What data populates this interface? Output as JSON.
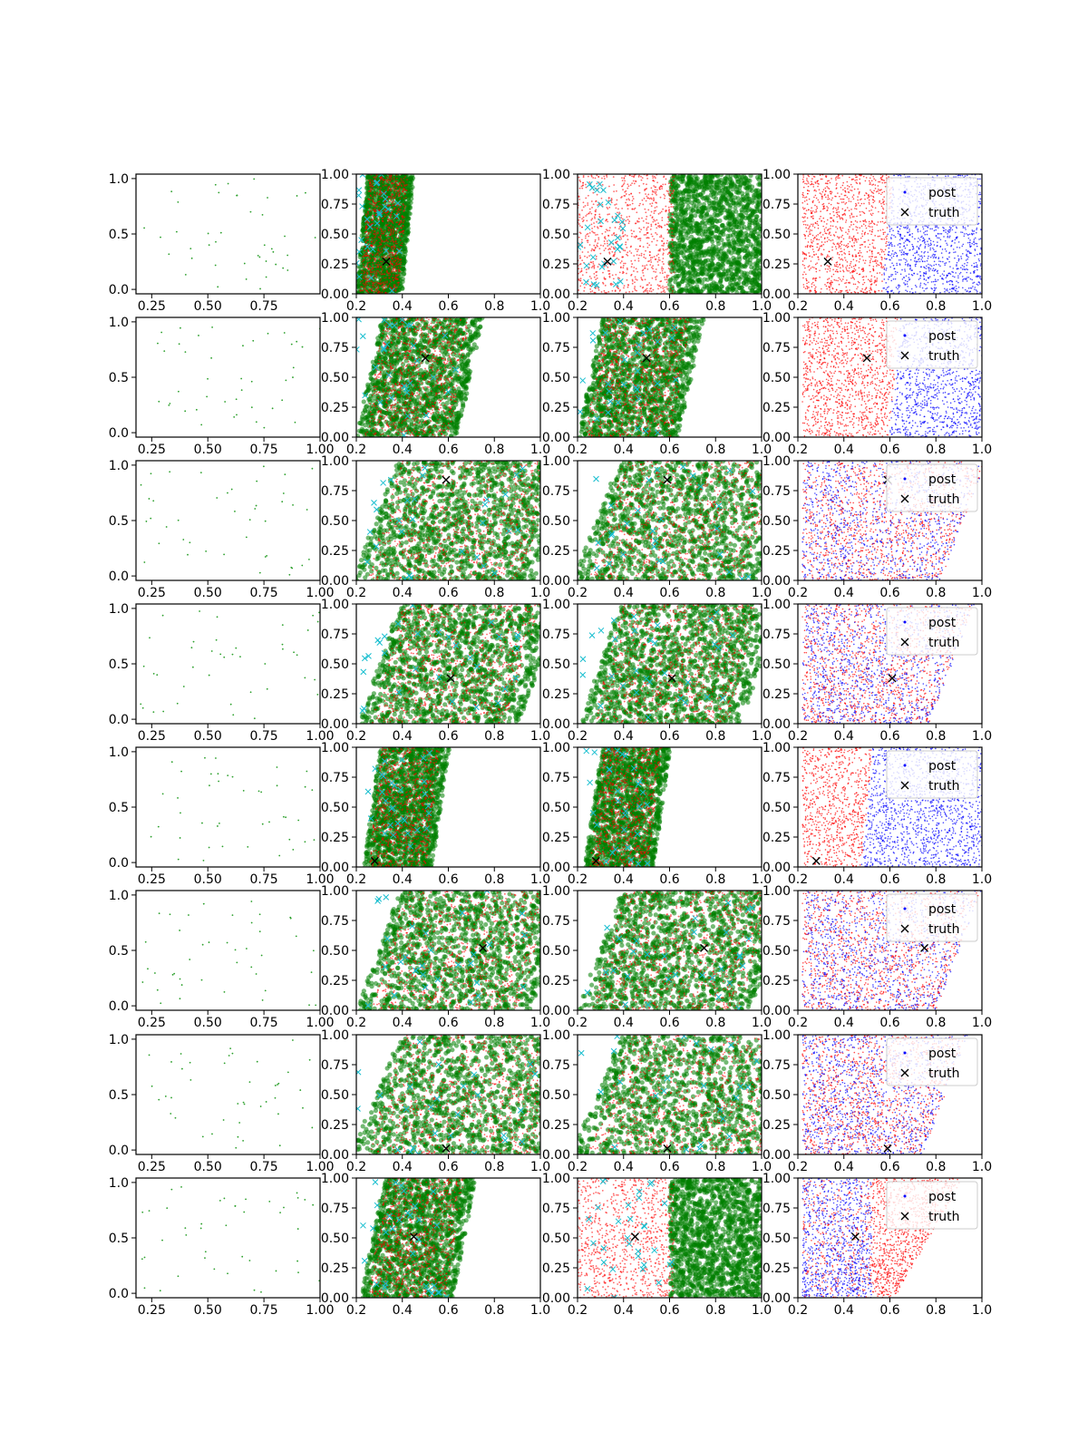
{
  "chart_data": {
    "type": "scatter",
    "layout": {
      "rows": 8,
      "cols": 4
    },
    "series_colors": {
      "sample_dots": "#2ca02c",
      "green_cloud": "#008000",
      "red_cloud": "#ff0000",
      "blue_cloud": "#0000ff",
      "cyan_marks": "#17becf",
      "truth_marker": "#000000"
    },
    "legend_labels": {
      "post": "post",
      "truth": "truth"
    },
    "axes": {
      "col1_x_ticks_row1": [
        "0.25",
        "0.50",
        "0.75"
      ],
      "col1_x_ticks_rest": [
        "0.25",
        "0.50",
        "0.75",
        "1.00"
      ],
      "col1_y_ticks": [
        "0.0",
        "0.5",
        "1.0"
      ],
      "x_ticks": [
        "0.2",
        "0.4",
        "0.6",
        "0.8",
        "1.0"
      ],
      "y_ticks": [
        "0.00",
        "0.25",
        "0.50",
        "0.75",
        "1.00"
      ],
      "col1_xlim": [
        0.18,
        1.0
      ],
      "col1_ylim": [
        -0.04,
        1.04
      ],
      "xlim": [
        0.2,
        1.0
      ],
      "ylim": [
        0.0,
        1.0
      ]
    },
    "rows": [
      {
        "truth": [
          0.33,
          0.27
        ],
        "cut": 0.59,
        "width": 0.1,
        "center": 0.3,
        "col3_green": "right",
        "col4_blue": "right",
        "legend": true
      },
      {
        "truth": [
          0.5,
          0.66
        ],
        "cut": 0.62,
        "width": 0.22,
        "center": 0.42,
        "col3_green": "left",
        "col4_blue": "right",
        "legend": true
      },
      {
        "truth": [
          0.59,
          0.84
        ],
        "cut": 0.7,
        "width": 0.4,
        "center": 0.58,
        "col3_green": "left",
        "col4_blue": "mixed",
        "legend": true
      },
      {
        "truth": [
          0.61,
          0.38
        ],
        "cut": 0.65,
        "width": 0.35,
        "center": 0.56,
        "col3_green": "left",
        "col4_blue": "mixed",
        "legend": true
      },
      {
        "truth": [
          0.28,
          0.05
        ],
        "cut": 0.5,
        "width": 0.15,
        "center": 0.38,
        "col3_green": "left",
        "col4_blue": "right",
        "legend": true
      },
      {
        "truth": [
          0.75,
          0.52
        ],
        "cut": 0.68,
        "width": 0.38,
        "center": 0.58,
        "col3_green": "left",
        "col4_blue": "mixed",
        "legend": true
      },
      {
        "truth": [
          0.59,
          0.05
        ],
        "cut": 0.62,
        "width": 0.45,
        "center": 0.62,
        "col3_green": "left",
        "col4_blue": "mixed",
        "legend": true
      },
      {
        "truth": [
          0.45,
          0.51
        ],
        "cut": 0.6,
        "width": 0.2,
        "center": 0.42,
        "col3_green": "right",
        "col4_blue": "left",
        "legend": true
      }
    ]
  }
}
